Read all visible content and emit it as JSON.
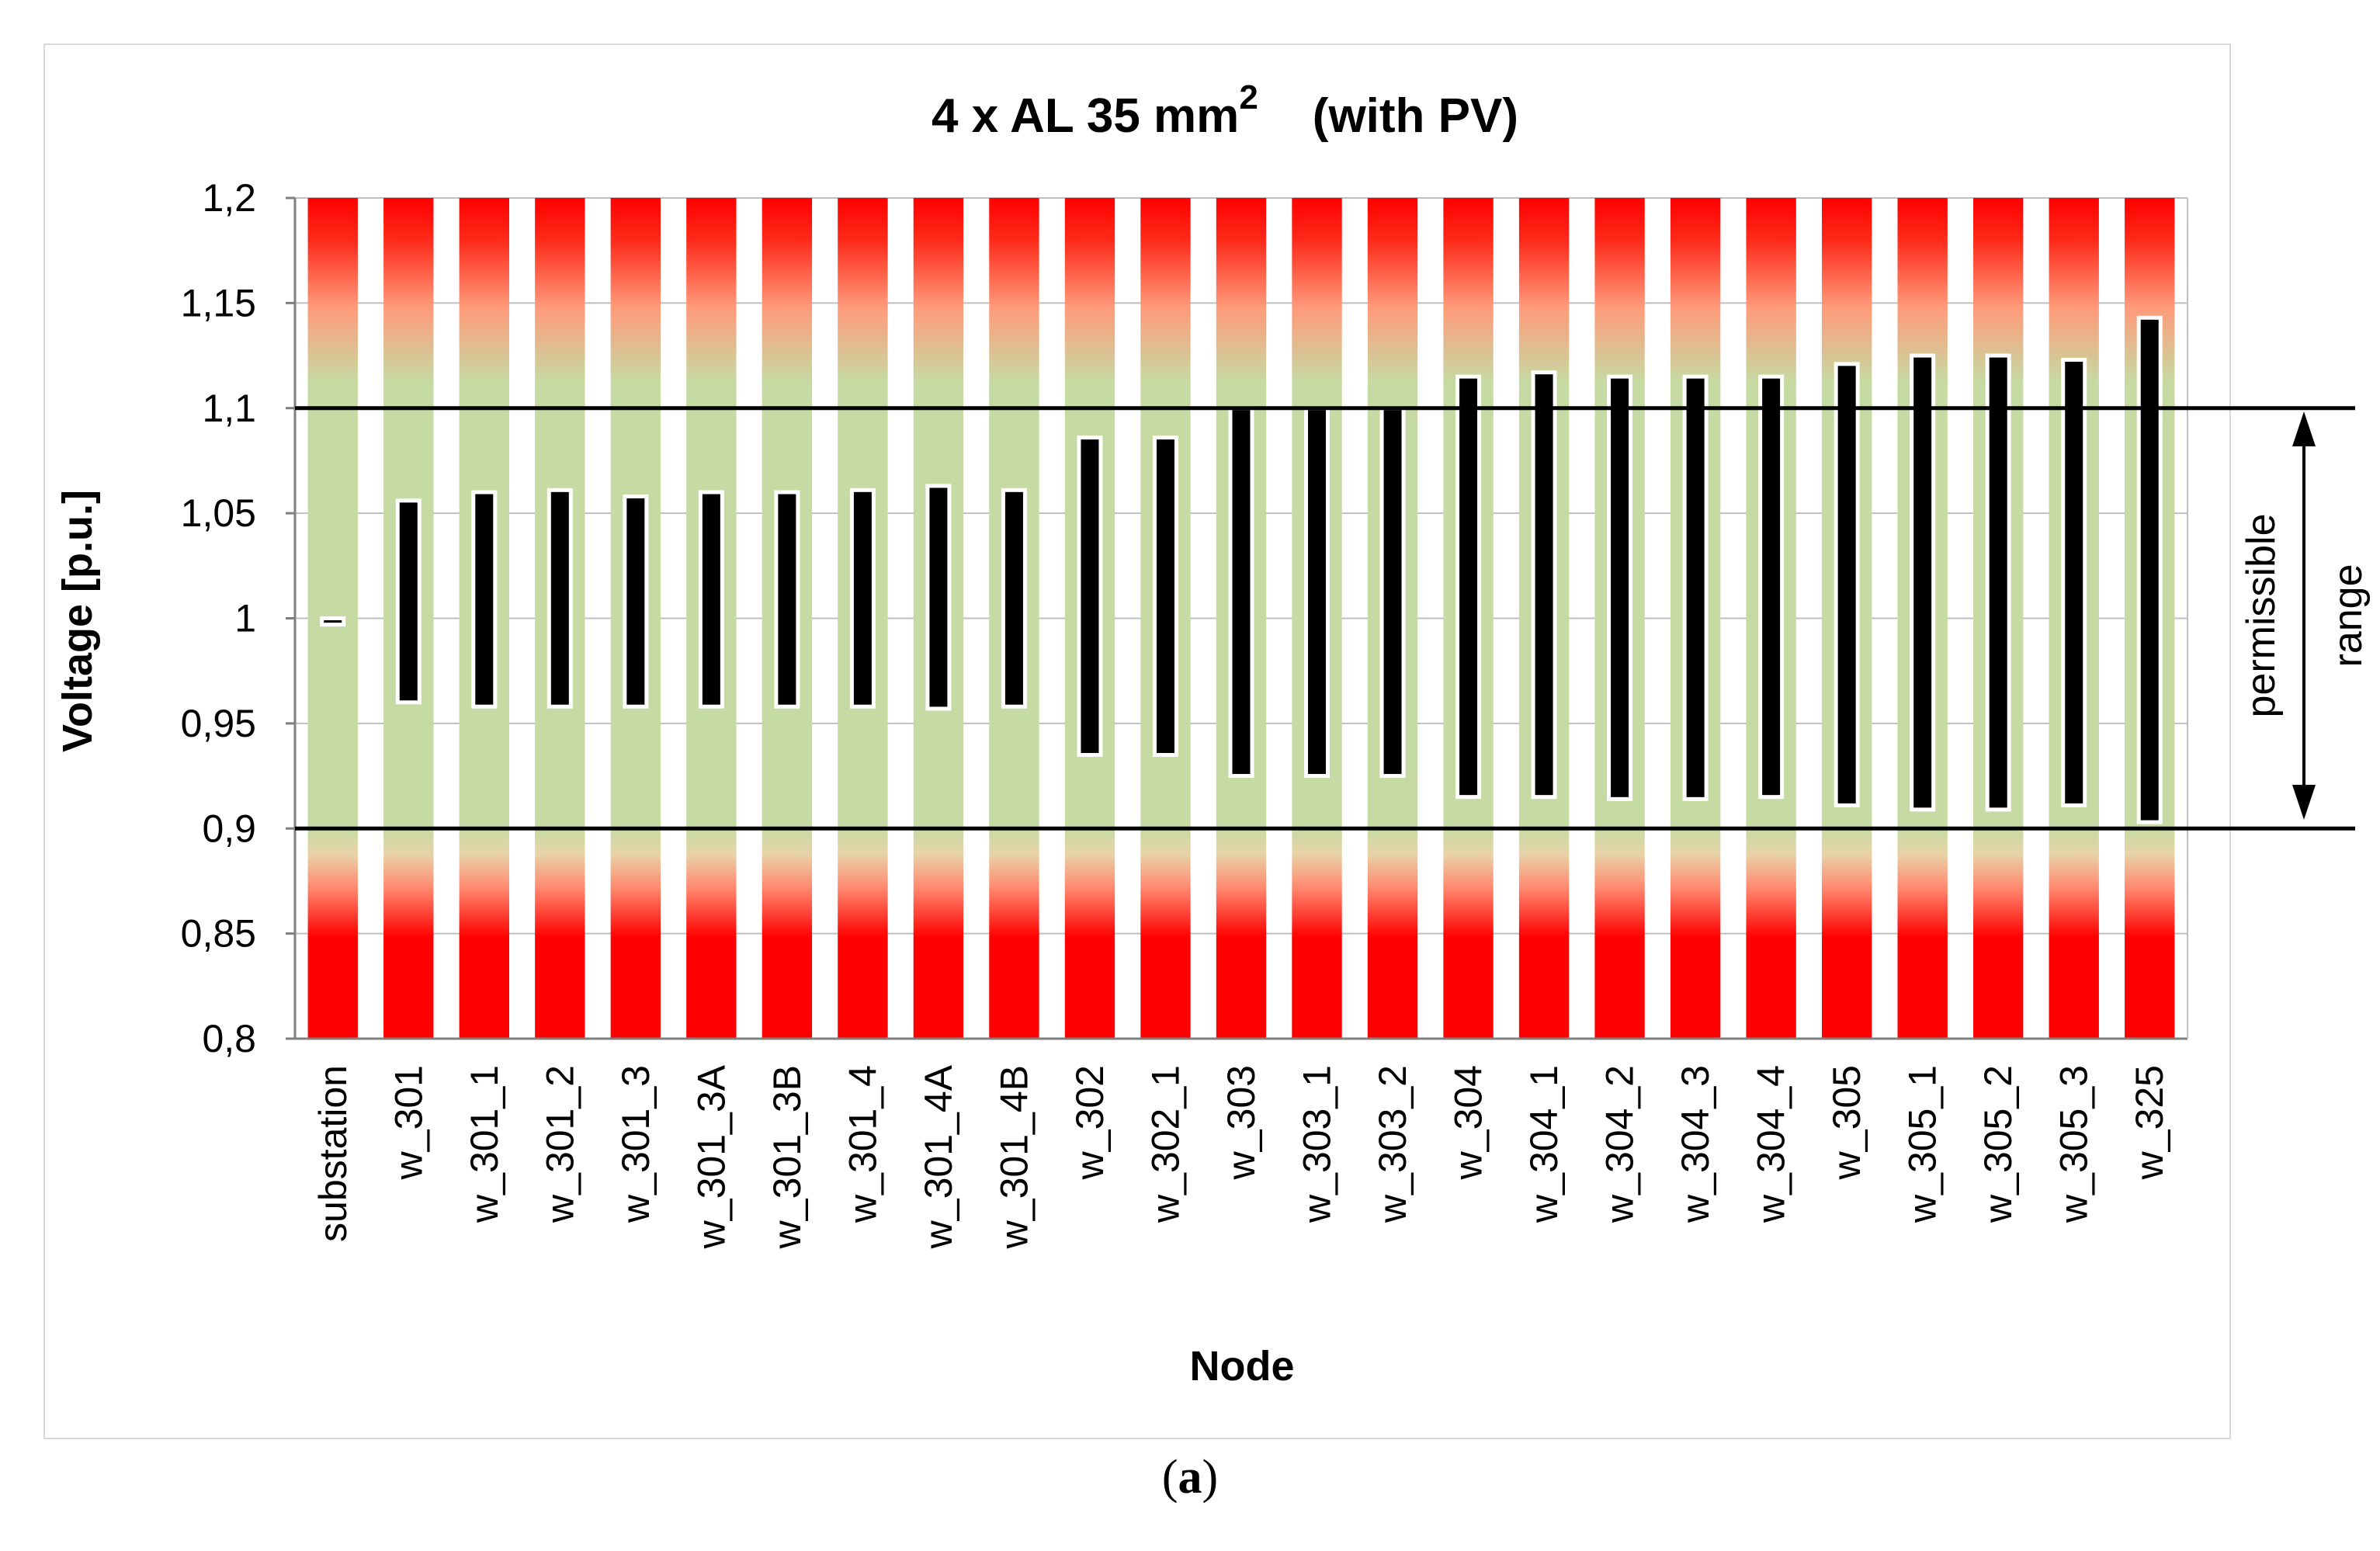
{
  "chart_data": {
    "type": "bar",
    "title_main": "4 x AL 35 mm",
    "title_sup": "2",
    "title_suffix": "(with PV)",
    "xlabel": "Node",
    "ylabel": "Voltage [p.u.]",
    "ylim": [
      0.8,
      1.2
    ],
    "yticks": [
      "1,2",
      "1,15",
      "1,1",
      "1,05",
      "1",
      "0,95",
      "0,9",
      "0,85",
      "0,8"
    ],
    "ytick_values": [
      1.2,
      1.15,
      1.1,
      1.05,
      1.0,
      0.95,
      0.9,
      0.85,
      0.8
    ],
    "grid": true,
    "categories": [
      "substation",
      "w_301",
      "w_301_1",
      "w_301_2",
      "w_301_3",
      "w_301_3A",
      "w_301_3B",
      "w_301_4",
      "w_301_4A",
      "w_301_4B",
      "w_302",
      "w_302_1",
      "w_303",
      "w_303_1",
      "w_303_2",
      "w_304",
      "w_304_1",
      "w_304_2",
      "w_304_3",
      "w_304_4",
      "w_305",
      "w_305_1",
      "w_305_2",
      "w_305_3",
      "w_325"
    ],
    "series": [
      {
        "values_min": [
          0.997,
          0.96,
          0.958,
          0.958,
          0.958,
          0.958,
          0.958,
          0.958,
          0.957,
          0.958,
          0.935,
          0.935,
          0.925,
          0.925,
          0.925,
          0.915,
          0.915,
          0.914,
          0.914,
          0.915,
          0.911,
          0.909,
          0.909,
          0.911,
          0.903
        ],
        "values_max": [
          1.0,
          1.056,
          1.06,
          1.061,
          1.058,
          1.06,
          1.06,
          1.061,
          1.063,
          1.061,
          1.086,
          1.086,
          1.1,
          1.1,
          1.1,
          1.115,
          1.117,
          1.115,
          1.115,
          1.115,
          1.121,
          1.125,
          1.125,
          1.123,
          1.143
        ]
      }
    ],
    "limits": {
      "upper": 1.1,
      "lower": 0.9
    },
    "annotation": [
      "permissible",
      "range"
    ],
    "colors": {
      "permissible": "#c5dba3",
      "violation": "#ff0000",
      "range_bar": "#000000",
      "range_outline": "#ffffff"
    }
  },
  "caption": {
    "open": "(",
    "letter": "a",
    "close": ")"
  }
}
